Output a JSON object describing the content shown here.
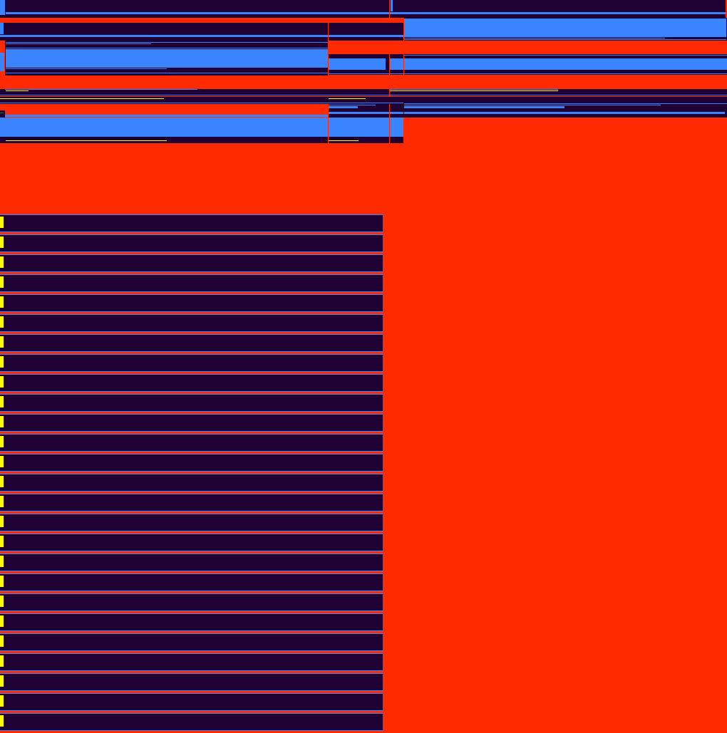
{
  "colors": {
    "background": "#ff2a00",
    "panel": "#1e0033",
    "accent": "#3a84ff",
    "highlight": "#ffff00",
    "indicator": "#1f7a1f"
  },
  "list": {
    "items": [
      {},
      {},
      {},
      {},
      {},
      {},
      {},
      {},
      {},
      {},
      {},
      {},
      {},
      {},
      {},
      {},
      {},
      {},
      {},
      {},
      {},
      {},
      {},
      {},
      {},
      {}
    ]
  }
}
